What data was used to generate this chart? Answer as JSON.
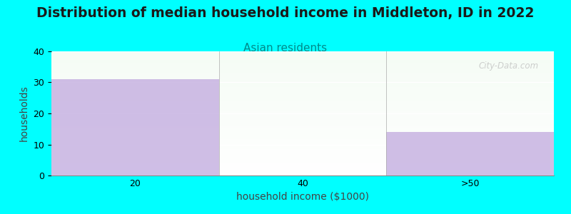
{
  "title": "Distribution of median household income in Middleton, ID in 2022",
  "subtitle": "Asian residents",
  "xlabel": "household income ($1000)",
  "ylabel": "households",
  "categories": [
    "20",
    "40",
    ">50"
  ],
  "values": [
    31,
    0,
    14
  ],
  "bar_color": "#c4aee0",
  "bar_alpha": 0.8,
  "background_color": "#00ffff",
  "ylim": [
    0,
    40
  ],
  "yticks": [
    0,
    10,
    20,
    30,
    40
  ],
  "title_fontsize": 13.5,
  "subtitle_fontsize": 11,
  "subtitle_color": "#008b8b",
  "axis_label_fontsize": 10,
  "tick_fontsize": 9,
  "watermark": "City-Data.com"
}
